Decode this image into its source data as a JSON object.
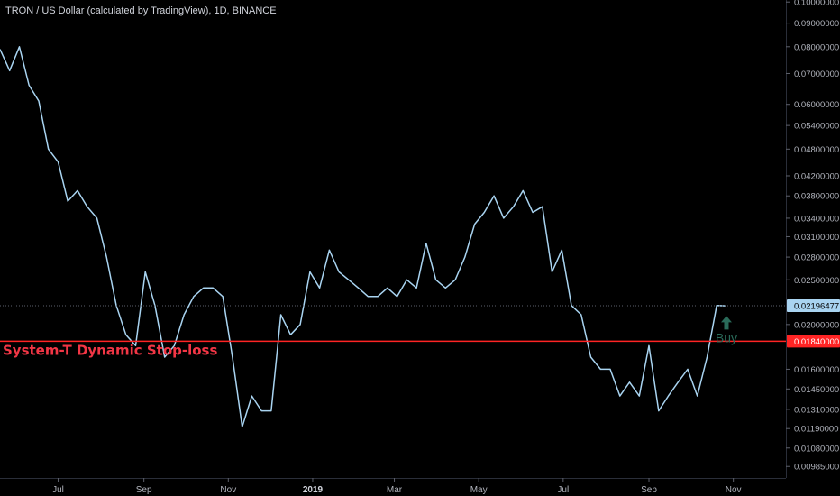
{
  "title": "TRON / US Dollar (calculated by TradingView), 1D, BINANCE",
  "chart_data": {
    "type": "line",
    "title": "TRON / US Dollar (calculated by TradingView), 1D, BINANCE",
    "y_scale": "log",
    "ylim": [
      0.0093,
      0.101
    ],
    "y_ticks": [
      "0.10000000",
      "0.09000000",
      "0.08000000",
      "0.07000000",
      "0.06000000",
      "0.05400000",
      "0.04800000",
      "0.04200000",
      "0.03800000",
      "0.03400000",
      "0.03100000",
      "0.02800000",
      "0.02500000",
      "0.02000000",
      "0.01600000",
      "0.01450000",
      "0.01310000",
      "0.01190000",
      "0.01080000",
      "0.00985000"
    ],
    "x_ticks": [
      {
        "label": "Jul",
        "date": "2018-07-01",
        "bold": false
      },
      {
        "label": "Sep",
        "date": "2018-09-01",
        "bold": false
      },
      {
        "label": "Nov",
        "date": "2018-11-01",
        "bold": false
      },
      {
        "label": "2019",
        "date": "2019-01-01",
        "bold": true
      },
      {
        "label": "Mar",
        "date": "2019-03-01",
        "bold": false
      },
      {
        "label": "May",
        "date": "2019-05-01",
        "bold": false
      },
      {
        "label": "Jul",
        "date": "2019-07-01",
        "bold": false
      },
      {
        "label": "Sep",
        "date": "2019-09-01",
        "bold": false
      },
      {
        "label": "Nov",
        "date": "2019-11-01",
        "bold": false
      }
    ],
    "x_range": [
      "2018-05-20",
      "2019-12-09"
    ],
    "series": [
      {
        "color": "#a9d4f1",
        "x": [
          "2018-05-20",
          "2018-05-27",
          "2018-06-03",
          "2018-06-10",
          "2018-06-17",
          "2018-06-24",
          "2018-07-01",
          "2018-07-08",
          "2018-07-15",
          "2018-07-22",
          "2018-07-29",
          "2018-08-05",
          "2018-08-12",
          "2018-08-19",
          "2018-08-26",
          "2018-09-02",
          "2018-09-09",
          "2018-09-16",
          "2018-09-23",
          "2018-09-30",
          "2018-10-07",
          "2018-10-14",
          "2018-10-21",
          "2018-10-28",
          "2018-11-04",
          "2018-11-11",
          "2018-11-18",
          "2018-11-25",
          "2018-12-02",
          "2018-12-09",
          "2018-12-16",
          "2018-12-23",
          "2018-12-30",
          "2019-01-06",
          "2019-01-13",
          "2019-01-20",
          "2019-01-27",
          "2019-02-03",
          "2019-02-10",
          "2019-02-17",
          "2019-02-24",
          "2019-03-03",
          "2019-03-10",
          "2019-03-17",
          "2019-03-24",
          "2019-03-31",
          "2019-04-07",
          "2019-04-14",
          "2019-04-21",
          "2019-04-28",
          "2019-05-05",
          "2019-05-12",
          "2019-05-19",
          "2019-05-26",
          "2019-06-02",
          "2019-06-09",
          "2019-06-16",
          "2019-06-23",
          "2019-06-30",
          "2019-07-07",
          "2019-07-14",
          "2019-07-21",
          "2019-07-28",
          "2019-08-04",
          "2019-08-11",
          "2019-08-18",
          "2019-08-25",
          "2019-09-01",
          "2019-09-08",
          "2019-09-15",
          "2019-09-22",
          "2019-09-29",
          "2019-10-06",
          "2019-10-13",
          "2019-10-20",
          "2019-10-27"
        ],
        "y": [
          0.079,
          0.071,
          0.08,
          0.066,
          0.061,
          0.048,
          0.045,
          0.037,
          0.039,
          0.036,
          0.034,
          0.028,
          0.022,
          0.019,
          0.018,
          0.026,
          0.022,
          0.017,
          0.018,
          0.021,
          0.023,
          0.024,
          0.024,
          0.023,
          0.017,
          0.012,
          0.014,
          0.013,
          0.013,
          0.021,
          0.019,
          0.02,
          0.026,
          0.024,
          0.029,
          0.026,
          0.025,
          0.024,
          0.023,
          0.023,
          0.024,
          0.023,
          0.025,
          0.024,
          0.03,
          0.025,
          0.024,
          0.025,
          0.028,
          0.033,
          0.035,
          0.038,
          0.034,
          0.036,
          0.039,
          0.035,
          0.036,
          0.026,
          0.029,
          0.022,
          0.021,
          0.017,
          0.016,
          0.016,
          0.014,
          0.015,
          0.014,
          0.018,
          0.013,
          0.014,
          0.015,
          0.016,
          0.014,
          0.017,
          0.022,
          0.02196
        ]
      }
    ],
    "last_price_label": "0.02196477",
    "last_price": 0.02196477,
    "stop_level_label": "0.01840000",
    "stop_level": 0.0184,
    "stop_line_text": "System-T Dynamic Stop-loss",
    "buy_text": "Buy",
    "buy_date": "2019-10-27",
    "colors": {
      "background": "#000000",
      "line": "#a9d4f1",
      "stop_line": "#ff2424",
      "stop_text": "#f23645",
      "buy": "#2a6b5a",
      "price_line": "#5d606b",
      "price_badge": "#a9d4f1",
      "stop_badge": "#ff2424"
    },
    "grid": false
  }
}
